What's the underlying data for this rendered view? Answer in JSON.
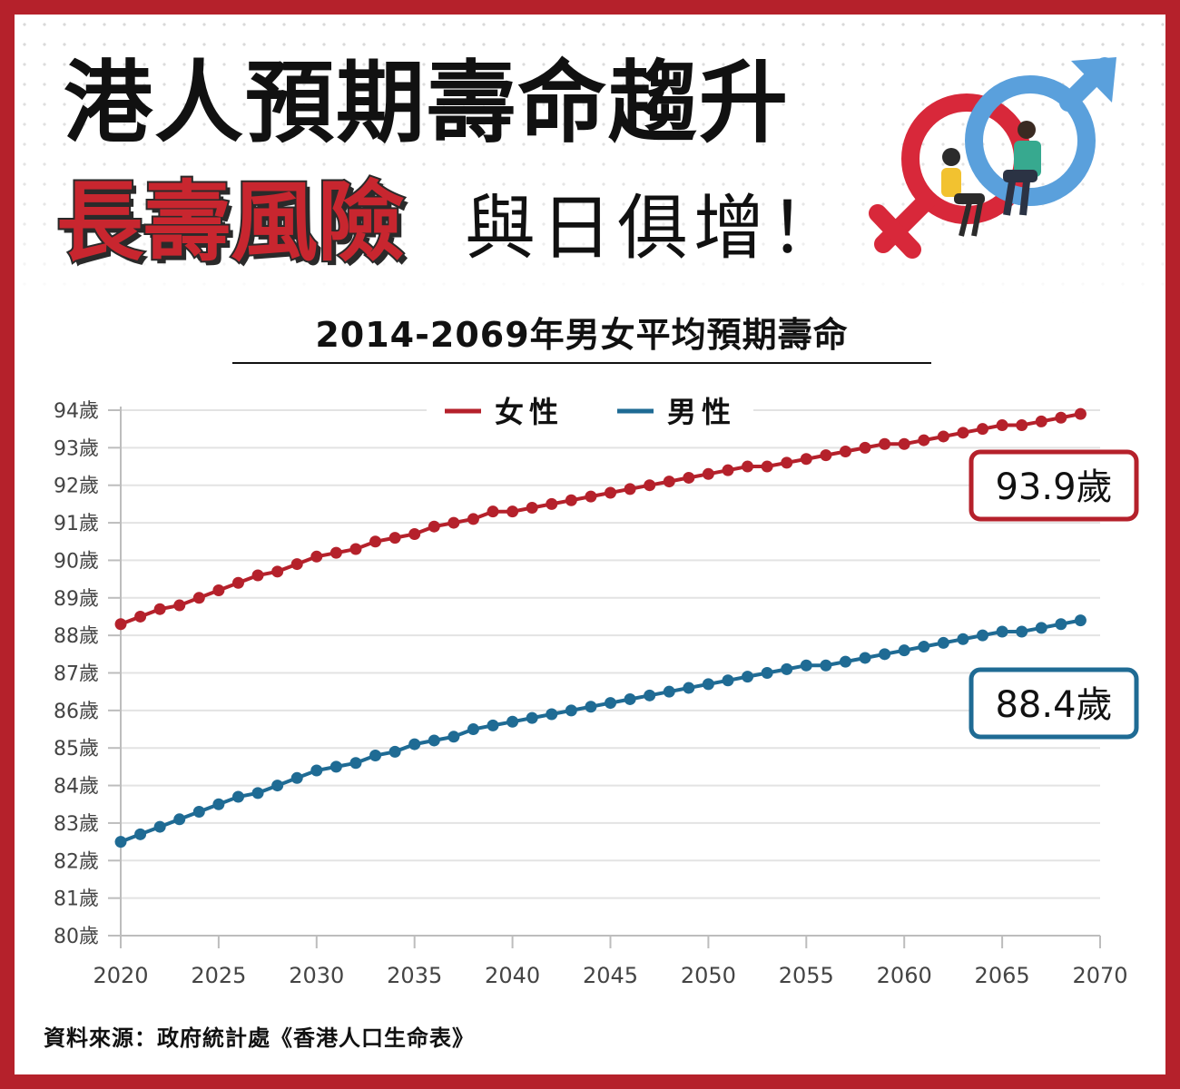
{
  "header": {
    "title_line1": "港人預期壽命趨升",
    "title_line2_highlight": "長壽風險",
    "title_line2_rest": "與日俱增！",
    "chart_title": "2014-2069年男女平均預期壽命"
  },
  "source": "資料來源：政府統計處《香港人口生命表》",
  "colors": {
    "female": "#b5212b",
    "male": "#1f6b94",
    "frame": "#b5212b",
    "grid": "#e3e3e3"
  },
  "chart_data": {
    "type": "line",
    "title": "2014-2069年男女平均預期壽命",
    "xlabel": "",
    "ylabel": "",
    "x_tick_labels": [
      "2020",
      "2025",
      "2030",
      "2035",
      "2040",
      "2045",
      "2050",
      "2055",
      "2060",
      "2065",
      "2070"
    ],
    "y_tick_labels": [
      "80歲",
      "81歲",
      "82歲",
      "83歲",
      "84歲",
      "85歲",
      "86歲",
      "87歲",
      "88歲",
      "89歲",
      "90歲",
      "91歲",
      "92歲",
      "93歲",
      "94歲"
    ],
    "xlim": [
      2020,
      2070
    ],
    "ylim": [
      80,
      94
    ],
    "grid": true,
    "legend_position": "top-center",
    "x": [
      2020,
      2021,
      2022,
      2023,
      2024,
      2025,
      2026,
      2027,
      2028,
      2029,
      2030,
      2031,
      2032,
      2033,
      2034,
      2035,
      2036,
      2037,
      2038,
      2039,
      2040,
      2041,
      2042,
      2043,
      2044,
      2045,
      2046,
      2047,
      2048,
      2049,
      2050,
      2051,
      2052,
      2053,
      2054,
      2055,
      2056,
      2057,
      2058,
      2059,
      2060,
      2061,
      2062,
      2063,
      2064,
      2065,
      2066,
      2067,
      2068,
      2069
    ],
    "series": [
      {
        "name": "女性",
        "color": "#b5212b",
        "values": [
          88.3,
          88.5,
          88.7,
          88.8,
          89.0,
          89.2,
          89.4,
          89.6,
          89.7,
          89.9,
          90.1,
          90.2,
          90.3,
          90.5,
          90.6,
          90.7,
          90.9,
          91.0,
          91.1,
          91.3,
          91.3,
          91.4,
          91.5,
          91.6,
          91.7,
          91.8,
          91.9,
          92.0,
          92.1,
          92.2,
          92.3,
          92.4,
          92.5,
          92.5,
          92.6,
          92.7,
          92.8,
          92.9,
          93.0,
          93.1,
          93.1,
          93.2,
          93.3,
          93.4,
          93.5,
          93.6,
          93.6,
          93.7,
          93.8,
          93.9
        ],
        "end_label": "93.9歲"
      },
      {
        "name": "男性",
        "color": "#1f6b94",
        "values": [
          82.5,
          82.7,
          82.9,
          83.1,
          83.3,
          83.5,
          83.7,
          83.8,
          84.0,
          84.2,
          84.4,
          84.5,
          84.6,
          84.8,
          84.9,
          85.1,
          85.2,
          85.3,
          85.5,
          85.6,
          85.7,
          85.8,
          85.9,
          86.0,
          86.1,
          86.2,
          86.3,
          86.4,
          86.5,
          86.6,
          86.7,
          86.8,
          86.9,
          87.0,
          87.1,
          87.2,
          87.2,
          87.3,
          87.4,
          87.5,
          87.6,
          87.7,
          87.8,
          87.9,
          88.0,
          88.1,
          88.1,
          88.2,
          88.3,
          88.4
        ],
        "end_label": "88.4歲"
      }
    ]
  }
}
